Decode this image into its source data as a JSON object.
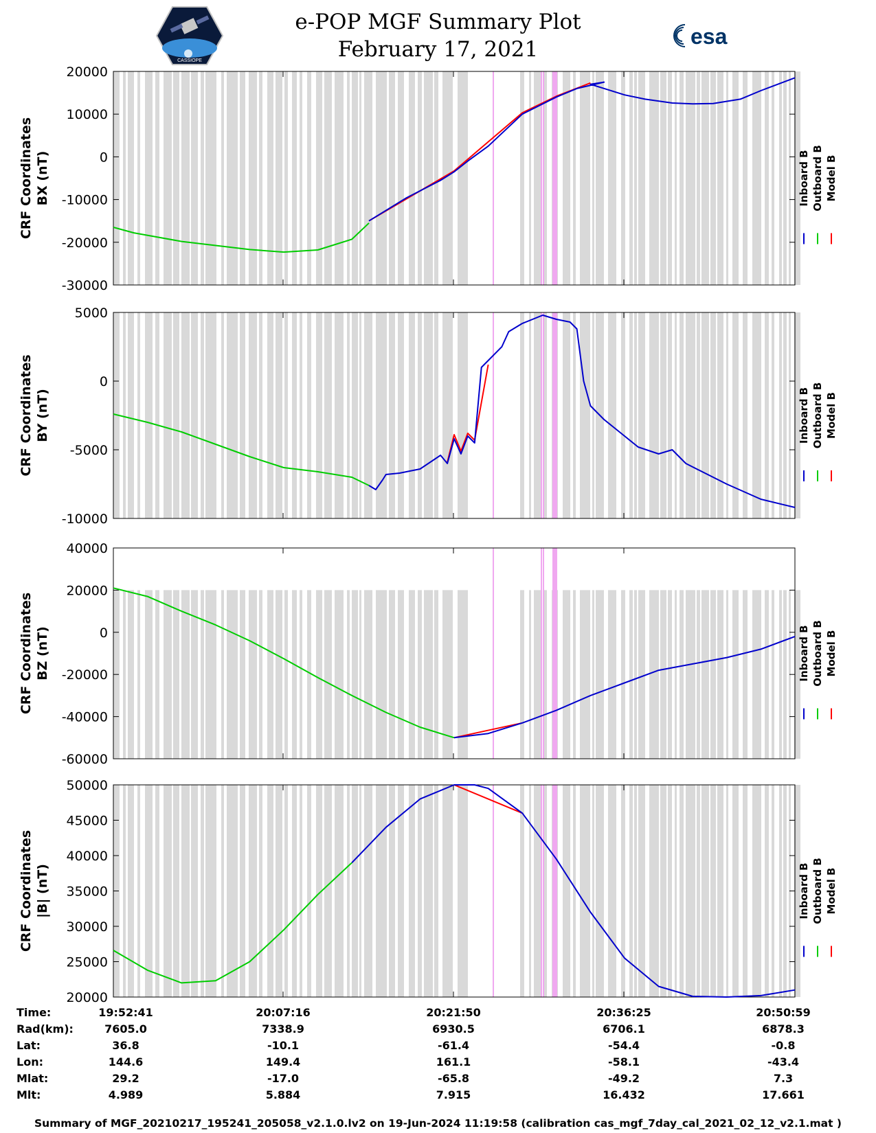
{
  "title": {
    "line1": "e-POP MGF Summary Plot",
    "line2": "February 17, 2021"
  },
  "logos": {
    "left_text": "CASSIOPE",
    "right_text": "esa"
  },
  "colors": {
    "inboard": "#0000cc",
    "outboard": "#00cc00",
    "model": "#ff0000",
    "gap": "#d9d9d9",
    "flag": "#f0a8f0"
  },
  "legend": [
    "Inboard B",
    "Outboard B",
    "Model B"
  ],
  "chart_data": [
    {
      "type": "line",
      "ylabel_line1": "CRF Coordinates",
      "ylabel_line2": "BX (nT)",
      "ylim": [
        -30000,
        20000
      ],
      "yticks": [
        -30000,
        -20000,
        -10000,
        0,
        10000,
        20000
      ],
      "series": [
        {
          "name": "Outboard B",
          "t": [
            0,
            0.03,
            0.1,
            0.2,
            0.25,
            0.3,
            0.35,
            0.375
          ],
          "values": [
            -16500,
            -17800,
            -19800,
            -21700,
            -22300,
            -21800,
            -19300,
            -15500
          ]
        },
        {
          "name": "Inboard B",
          "t": [
            0.375,
            0.43,
            0.48,
            0.5,
            0.5,
            0.52,
            0.55,
            0.6,
            0.65,
            0.68,
            0.72,
            0.7,
            0.75,
            0.78,
            0.82,
            0.85,
            0.88,
            0.92,
            0.95,
            1.0
          ],
          "values": [
            -15000,
            -9600,
            -5500,
            -3500,
            -3500,
            -1000,
            2500,
            10000,
            14000,
            16000,
            17500,
            17000,
            14500,
            13500,
            12600,
            12400,
            12500,
            13500,
            15500,
            18500
          ]
        },
        {
          "name": "Model B",
          "t": [
            0.375,
            0.5,
            0.6,
            0.65,
            0.7
          ],
          "values": [
            -15000,
            -3300,
            10300,
            14200,
            17300
          ]
        }
      ]
    },
    {
      "type": "line",
      "ylabel_line1": "CRF Coordinates",
      "ylabel_line2": "BY (nT)",
      "ylim": [
        -10000,
        5000
      ],
      "yticks": [
        -10000,
        -5000,
        0,
        5000
      ],
      "series": [
        {
          "name": "Outboard B",
          "t": [
            0,
            0.05,
            0.1,
            0.15,
            0.2,
            0.25,
            0.3,
            0.35,
            0.375
          ],
          "values": [
            -2400,
            -3000,
            -3700,
            -4600,
            -5500,
            -6300,
            -6600,
            -7000,
            -7600
          ]
        },
        {
          "name": "Inboard B",
          "t": [
            0.375,
            0.385,
            0.395,
            0.4,
            0.42,
            0.45,
            0.48,
            0.49,
            0.5,
            0.51,
            0.52,
            0.53,
            0.54,
            0.57,
            0.58,
            0.6,
            0.63,
            0.65,
            0.67,
            0.68,
            0.69,
            0.7,
            0.7,
            0.72,
            0.75,
            0.77,
            0.8,
            0.82,
            0.84,
            0.86,
            0.9,
            0.95,
            1.0
          ],
          "values": [
            -7600,
            -7900,
            -7200,
            -6800,
            -6700,
            -6400,
            -5400,
            -6000,
            -4200,
            -5300,
            -4000,
            -4500,
            1000,
            2500,
            3600,
            4200,
            4800,
            4500,
            4300,
            3800,
            0,
            -1800,
            -1800,
            -2800,
            -4000,
            -4800,
            -5300,
            -5000,
            -6000,
            -6500,
            -7500,
            -8600,
            -9200
          ]
        },
        {
          "name": "Model B",
          "t": [
            0.49,
            0.5,
            0.51,
            0.52,
            0.53,
            0.55
          ],
          "values": [
            -5900,
            -3900,
            -5100,
            -3800,
            -4300,
            1200
          ]
        }
      ]
    },
    {
      "type": "line",
      "ylabel_line1": "CRF Coordinates",
      "ylabel_line2": "BZ (nT)",
      "ylim": [
        -60000,
        40000
      ],
      "yticks": [
        -60000,
        -40000,
        -20000,
        0,
        20000,
        40000
      ],
      "series": [
        {
          "name": "Outboard B",
          "t": [
            0,
            0.05,
            0.1,
            0.15,
            0.2,
            0.25,
            0.3,
            0.35,
            0.4,
            0.45,
            0.5
          ],
          "values": [
            21000,
            17000,
            10000,
            3500,
            -4000,
            -12500,
            -21500,
            -30000,
            -38000,
            -45000,
            -50000
          ]
        },
        {
          "name": "Inboard B",
          "t": [
            0.5,
            0.55,
            0.6,
            0.65,
            0.7,
            0.75,
            0.8,
            0.85,
            0.9,
            0.95,
            1.0
          ],
          "values": [
            -50000,
            -48000,
            -43000,
            -37000,
            -30000,
            -24000,
            -18000,
            -15000,
            -12000,
            -8000,
            -2000
          ]
        },
        {
          "name": "Model B",
          "t": [
            0.5,
            0.6
          ],
          "values": [
            -50000,
            -43000
          ]
        }
      ]
    },
    {
      "type": "line",
      "ylabel_line1": "CRF Coordinates",
      "ylabel_line2": "|B| (nT)",
      "ylim": [
        20000,
        50000
      ],
      "yticks": [
        20000,
        25000,
        30000,
        35000,
        40000,
        45000,
        50000
      ],
      "series": [
        {
          "name": "Outboard B",
          "t": [
            0,
            0.05,
            0.1,
            0.15,
            0.2,
            0.25,
            0.3,
            0.35
          ],
          "values": [
            26600,
            23800,
            22000,
            22300,
            25000,
            29500,
            34500,
            39000
          ]
        },
        {
          "name": "Inboard B",
          "t": [
            0.35,
            0.4,
            0.45,
            0.5,
            0.53,
            0.55,
            0.6,
            0.65,
            0.7,
            0.75,
            0.8,
            0.85,
            0.9,
            0.95,
            1.0
          ],
          "values": [
            39000,
            44000,
            48000,
            50000,
            50000,
            49500,
            46000,
            39500,
            32000,
            25500,
            21500,
            20100,
            20000,
            20200,
            21000
          ]
        },
        {
          "name": "Model B",
          "t": [
            0.5,
            0.6
          ],
          "values": [
            50000,
            46000
          ]
        }
      ]
    }
  ],
  "info": {
    "labels": [
      "Time:",
      "Rad(km):",
      "Lat:",
      "Lon:",
      "Mlat:",
      "Mlt:"
    ],
    "columns": [
      [
        "19:52:41",
        "7605.0",
        "36.8",
        "144.6",
        "29.2",
        "4.989"
      ],
      [
        "20:07:16",
        "7338.9",
        "-10.1",
        "149.4",
        "-17.0",
        "5.884"
      ],
      [
        "20:21:50",
        "6930.5",
        "-61.4",
        "161.1",
        "-65.8",
        "7.915"
      ],
      [
        "20:36:25",
        "6706.1",
        "-54.4",
        "-58.1",
        "-49.2",
        "16.432"
      ],
      [
        "20:50:59",
        "6878.3",
        "-0.8",
        "-43.4",
        "7.3",
        "17.661"
      ]
    ]
  },
  "footer": "Summary of MGF_20210217_195241_205058_v2.1.0.lv2 on 19-Jun-2024 11:19:58 (calibration cas_mgf_7day_cal_2021_02_12_v2.1.mat )"
}
